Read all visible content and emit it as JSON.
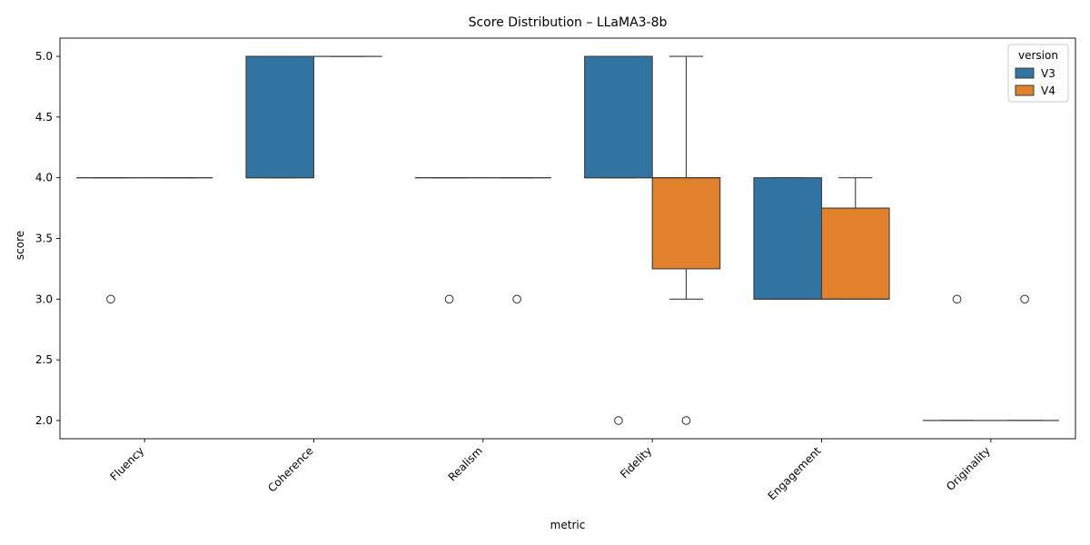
{
  "chart_data": {
    "type": "box",
    "title": "Score Distribution – LLaMA3-8b",
    "xlabel": "metric",
    "ylabel": "score",
    "ylim": [
      1.85,
      5.15
    ],
    "yticks": [
      2.0,
      2.5,
      3.0,
      3.5,
      4.0,
      4.5,
      5.0
    ],
    "ytick_labels": [
      "2.0",
      "2.5",
      "3.0",
      "3.5",
      "4.0",
      "4.5",
      "5.0"
    ],
    "categories": [
      "Fluency",
      "Coherence",
      "Realism",
      "Fidelity",
      "Engagement",
      "Originality"
    ],
    "legend": {
      "title": "version",
      "position": "top-right"
    },
    "grid": false,
    "series": [
      {
        "name": "V3",
        "color": "#3274a1",
        "boxes": [
          {
            "q1": 4,
            "median": 4,
            "q3": 4,
            "whisker_low": 4,
            "whisker_high": 4,
            "outliers": [
              3
            ]
          },
          {
            "q1": 4,
            "median": 4,
            "q3": 5,
            "whisker_low": 4,
            "whisker_high": 5,
            "outliers": []
          },
          {
            "q1": 4,
            "median": 4,
            "q3": 4,
            "whisker_low": 4,
            "whisker_high": 4,
            "outliers": [
              3
            ]
          },
          {
            "q1": 4,
            "median": 4,
            "q3": 5,
            "whisker_low": 4,
            "whisker_high": 5,
            "outliers": [
              2
            ]
          },
          {
            "q1": 3,
            "median": 3,
            "q3": 4,
            "whisker_low": 3,
            "whisker_high": 4,
            "outliers": []
          },
          {
            "q1": 2,
            "median": 2,
            "q3": 2,
            "whisker_low": 2,
            "whisker_high": 2,
            "outliers": [
              3
            ]
          }
        ]
      },
      {
        "name": "V4",
        "color": "#e1812c",
        "boxes": [
          {
            "q1": 4,
            "median": 4,
            "q3": 4,
            "whisker_low": 4,
            "whisker_high": 4,
            "outliers": []
          },
          {
            "q1": 5,
            "median": 5,
            "q3": 5,
            "whisker_low": 5,
            "whisker_high": 5,
            "outliers": []
          },
          {
            "q1": 4,
            "median": 4,
            "q3": 4,
            "whisker_low": 4,
            "whisker_high": 4,
            "outliers": [
              3
            ]
          },
          {
            "q1": 3.25,
            "median": 4,
            "q3": 4,
            "whisker_low": 3,
            "whisker_high": 5,
            "outliers": [
              2
            ]
          },
          {
            "q1": 3,
            "median": 3,
            "q3": 3.75,
            "whisker_low": 3,
            "whisker_high": 4,
            "outliers": []
          },
          {
            "q1": 2,
            "median": 2,
            "q3": 2,
            "whisker_low": 2,
            "whisker_high": 2,
            "outliers": [
              3
            ]
          }
        ]
      }
    ]
  }
}
